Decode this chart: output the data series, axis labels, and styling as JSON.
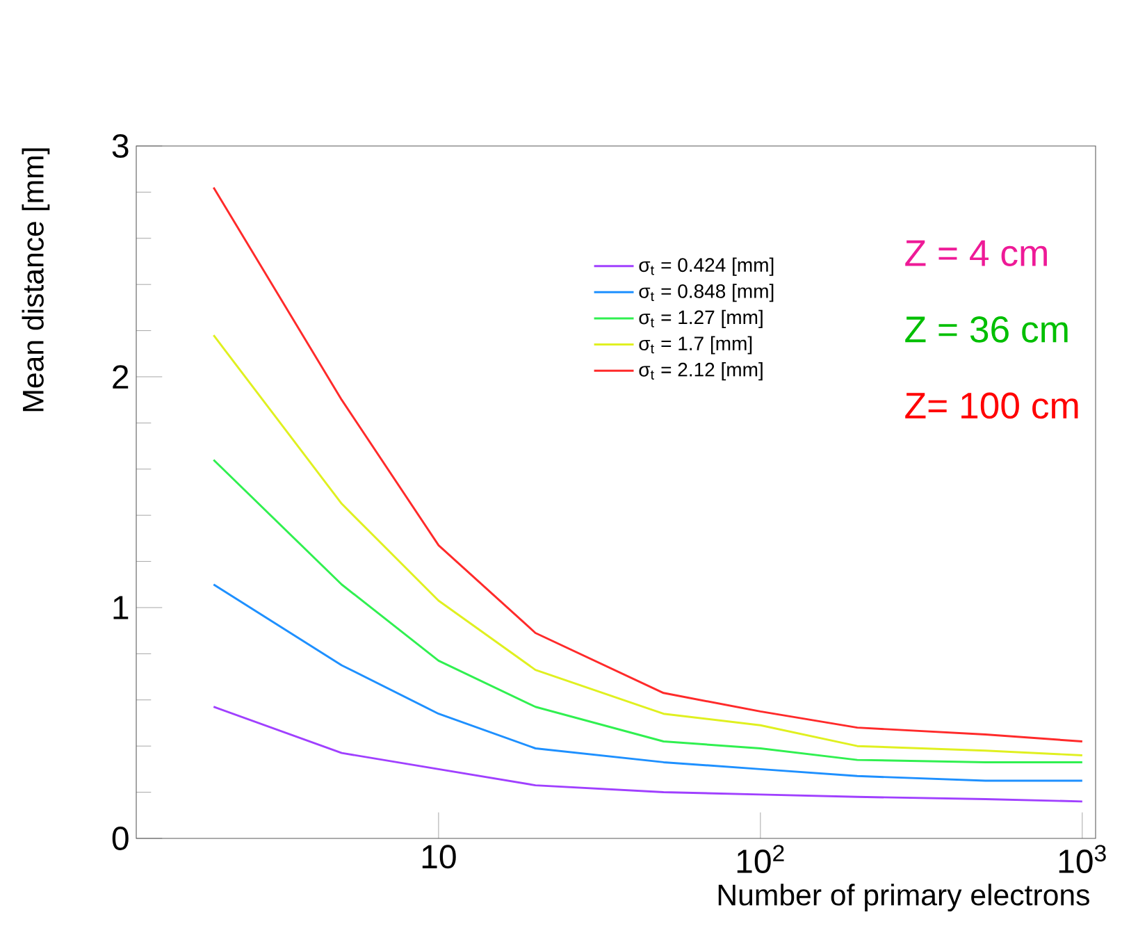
{
  "chart_data": {
    "type": "line",
    "xlabel": "Number of primary electrons",
    "ylabel": "Mean distance [mm]",
    "x": [
      2,
      5,
      10,
      20,
      50,
      100,
      200,
      500,
      1000
    ],
    "series": [
      {
        "name": "σ$_{t}$ = 0.424 [mm]",
        "color": "#a040ff",
        "values": [
          0.57,
          0.37,
          0.3,
          0.23,
          0.2,
          0.19,
          0.18,
          0.17,
          0.16
        ]
      },
      {
        "name": "σ$_{t}$ = 0.848 [mm]",
        "color": "#1e90ff",
        "values": [
          1.1,
          0.75,
          0.54,
          0.39,
          0.33,
          0.3,
          0.27,
          0.25,
          0.25
        ]
      },
      {
        "name": "σ$_{t}$ = 1.27 [mm]",
        "color": "#30f050",
        "values": [
          1.64,
          1.1,
          0.77,
          0.57,
          0.42,
          0.39,
          0.34,
          0.33,
          0.33
        ]
      },
      {
        "name": "σ$_{t}$ = 1.7 [mm]",
        "color": "#e0f020",
        "values": [
          2.18,
          1.45,
          1.03,
          0.73,
          0.54,
          0.49,
          0.4,
          0.38,
          0.36
        ]
      },
      {
        "name": "σ$_{t}$ = 2.12 [mm]",
        "color": "#ff2a2a",
        "values": [
          2.82,
          1.9,
          1.27,
          0.89,
          0.63,
          0.55,
          0.48,
          0.45,
          0.42
        ]
      }
    ],
    "xlim": [
      1.15,
      1100
    ],
    "ylim": [
      0,
      3
    ],
    "xticks": [
      10,
      {
        "value": 100,
        "label": "10$^{2}$"
      },
      {
        "value": 1000,
        "label": "10$^{3}$"
      }
    ],
    "yticks": [
      0,
      1,
      2,
      3
    ],
    "log": "x",
    "legend": "top right",
    "grid": false,
    "marker": "none",
    "line_style": "solid",
    "annotations": [
      "Z = 4 cm",
      "Z = 36 cm",
      "Z=  100 cm"
    ]
  }
}
